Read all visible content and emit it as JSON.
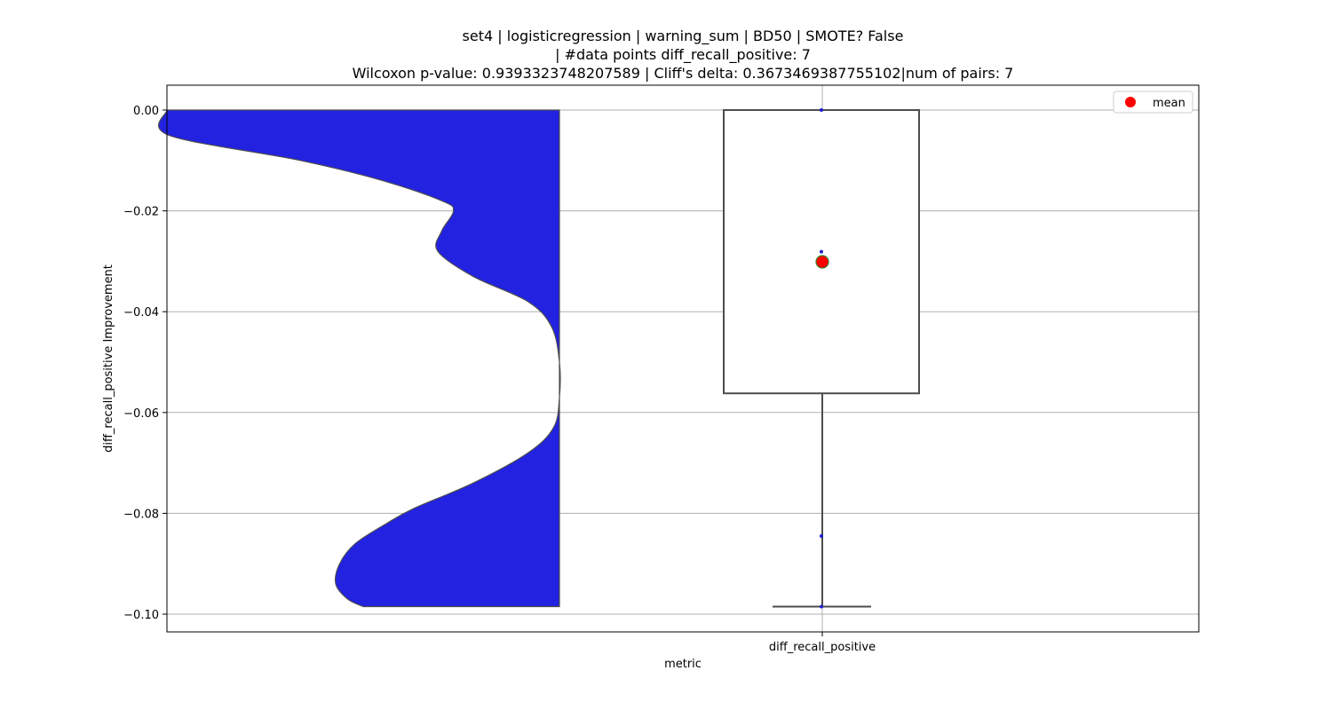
{
  "chart_data": {
    "type": "violin+box",
    "title_lines": [
      "set4 | logisticregression | warning_sum | BD50 | SMOTE? False",
      "| #data points diff_recall_positive: 7",
      "Wilcoxon p-value: 0.9393323748207589 | Cliff's delta: 0.3673469387755102|num of pairs: 7"
    ],
    "xlabel": "metric",
    "ylabel": "diff_recall_positive Improvement",
    "categories": [
      "diff_recall_positive"
    ],
    "ylim": [
      -0.1034,
      0.005
    ],
    "yticks": [
      0.0,
      -0.02,
      -0.04,
      -0.06,
      -0.08,
      -0.1
    ],
    "ytick_labels": [
      "0.00",
      "−0.02",
      "−0.04",
      "−0.06",
      "−0.08",
      "−0.10"
    ],
    "grid": true,
    "legend": {
      "placement": "top-right",
      "entries": [
        {
          "label": "mean",
          "color": "#ff0000",
          "marker": "circle"
        }
      ]
    },
    "violin": {
      "side": "left",
      "color": "#2222e0",
      "range": [
        -0.0985,
        0.0
      ],
      "profile": [
        [
          0.0,
          1.0
        ],
        [
          -0.005,
          0.995
        ],
        [
          -0.01,
          0.66
        ],
        [
          -0.014,
          0.45
        ],
        [
          -0.018,
          0.3
        ],
        [
          -0.02,
          0.27
        ],
        [
          -0.024,
          0.3
        ],
        [
          -0.028,
          0.31
        ],
        [
          -0.033,
          0.22
        ],
        [
          -0.038,
          0.08
        ],
        [
          -0.043,
          0.02
        ],
        [
          -0.05,
          0.0
        ],
        [
          -0.057,
          0.0
        ],
        [
          -0.063,
          0.015
        ],
        [
          -0.068,
          0.08
        ],
        [
          -0.074,
          0.22
        ],
        [
          -0.079,
          0.37
        ],
        [
          -0.082,
          0.44
        ],
        [
          -0.086,
          0.52
        ],
        [
          -0.09,
          0.56
        ],
        [
          -0.094,
          0.57
        ],
        [
          -0.097,
          0.54
        ],
        [
          -0.0985,
          0.5
        ]
      ]
    },
    "box": {
      "q1": -0.0562,
      "median": 0.0,
      "q3": 0.0,
      "whisker_low": -0.0985,
      "whisker_high": 0.0,
      "mean": -0.0301
    },
    "points": [
      0.0,
      -0.0281,
      -0.0845,
      -0.0985
    ],
    "colors": {
      "box_edge": "#4d4d4d",
      "mean": "#ff0000",
      "mean_edge": "#3a7d2a",
      "points": "#1f1fd0"
    }
  }
}
